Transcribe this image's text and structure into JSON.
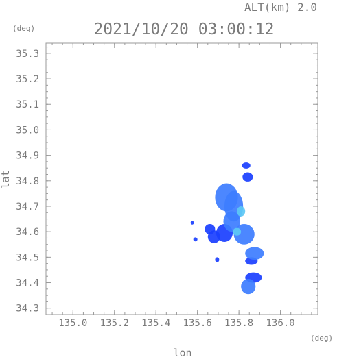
{
  "header": {
    "altitude_label": "ALT(km)  2.0",
    "timestamp": "2021/10/20 03:00:12"
  },
  "axes": {
    "x_label": "lon",
    "y_label": "lat",
    "x_unit": "(deg)",
    "y_unit": "(deg)",
    "x_range": [
      134.87,
      136.18
    ],
    "y_range": [
      34.275,
      35.34
    ],
    "x_ticks": [
      "135.0",
      "135.2",
      "135.4",
      "135.6",
      "135.8",
      "136.0"
    ],
    "y_ticks": [
      "34.3",
      "34.4",
      "34.5",
      "34.6",
      "34.7",
      "34.8",
      "34.9",
      "35.0",
      "35.1",
      "35.2",
      "35.3"
    ],
    "x_minor_step": 0.05,
    "y_minor_step": 0.025,
    "grid": false
  },
  "colors": {
    "axis": "#9a9a9a",
    "text": "#7a7a7a",
    "echo_dark": "#1a3fff",
    "echo_mid": "#3d7dff",
    "echo_light": "#5cc8f5"
  },
  "echo_cells": [
    {
      "lon": 135.835,
      "lat": 34.86,
      "rlon": 0.02,
      "rlat": 0.012,
      "level": 1
    },
    {
      "lon": 135.842,
      "lat": 34.815,
      "rlon": 0.025,
      "rlat": 0.018,
      "level": 1
    },
    {
      "lon": 135.74,
      "lat": 34.735,
      "rlon": 0.055,
      "rlat": 0.055,
      "level": 2
    },
    {
      "lon": 135.775,
      "lat": 34.7,
      "rlon": 0.045,
      "rlat": 0.06,
      "level": 2
    },
    {
      "lon": 135.765,
      "lat": 34.64,
      "rlon": 0.04,
      "rlat": 0.04,
      "level": 2
    },
    {
      "lon": 135.825,
      "lat": 34.59,
      "rlon": 0.05,
      "rlat": 0.04,
      "level": 2
    },
    {
      "lon": 135.73,
      "lat": 34.595,
      "rlon": 0.04,
      "rlat": 0.035,
      "level": 1
    },
    {
      "lon": 135.66,
      "lat": 34.61,
      "rlon": 0.025,
      "rlat": 0.02,
      "level": 1
    },
    {
      "lon": 135.68,
      "lat": 34.58,
      "rlon": 0.03,
      "rlat": 0.025,
      "level": 1
    },
    {
      "lon": 135.875,
      "lat": 34.515,
      "rlon": 0.045,
      "rlat": 0.025,
      "level": 2
    },
    {
      "lon": 135.86,
      "lat": 34.485,
      "rlon": 0.03,
      "rlat": 0.015,
      "level": 1
    },
    {
      "lon": 135.87,
      "lat": 34.42,
      "rlon": 0.04,
      "rlat": 0.02,
      "level": 1
    },
    {
      "lon": 135.845,
      "lat": 34.385,
      "rlon": 0.035,
      "rlat": 0.03,
      "level": 2
    },
    {
      "lon": 135.695,
      "lat": 34.49,
      "rlon": 0.01,
      "rlat": 0.01,
      "level": 1
    },
    {
      "lon": 135.575,
      "lat": 34.635,
      "rlon": 0.008,
      "rlat": 0.007,
      "level": 1
    },
    {
      "lon": 135.59,
      "lat": 34.57,
      "rlon": 0.01,
      "rlat": 0.008,
      "level": 1
    },
    {
      "lon": 135.81,
      "lat": 34.68,
      "rlon": 0.02,
      "rlat": 0.02,
      "level": 3
    },
    {
      "lon": 135.79,
      "lat": 34.6,
      "rlon": 0.02,
      "rlat": 0.015,
      "level": 3
    }
  ]
}
